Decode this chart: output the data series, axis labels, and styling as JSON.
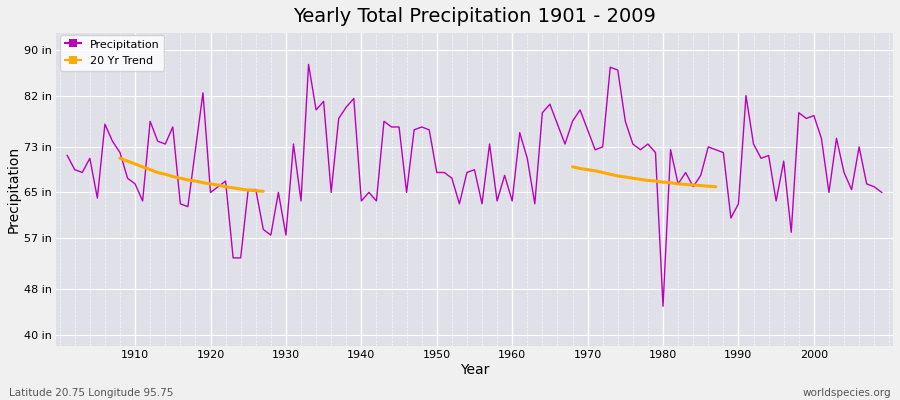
{
  "title": "Yearly Total Precipitation 1901 - 2009",
  "xlabel": "Year",
  "ylabel": "Precipitation",
  "footnote_left": "Latitude 20.75 Longitude 95.75",
  "footnote_right": "worldspecies.org",
  "bg_color": "#f0f0f0",
  "plot_bg_color": "#e0e0e8",
  "precip_color": "#bb00bb",
  "trend_color": "#ffaa00",
  "yticks": [
    40,
    48,
    57,
    65,
    73,
    82,
    90
  ],
  "ylim": [
    38,
    93
  ],
  "xlim": [
    1899.5,
    2010.5
  ],
  "years": [
    1901,
    1902,
    1903,
    1904,
    1905,
    1906,
    1907,
    1908,
    1909,
    1910,
    1911,
    1912,
    1913,
    1914,
    1915,
    1916,
    1917,
    1918,
    1919,
    1920,
    1921,
    1922,
    1923,
    1924,
    1925,
    1926,
    1927,
    1928,
    1929,
    1930,
    1931,
    1932,
    1933,
    1934,
    1935,
    1936,
    1937,
    1938,
    1939,
    1940,
    1941,
    1942,
    1943,
    1944,
    1945,
    1946,
    1947,
    1948,
    1949,
    1950,
    1951,
    1952,
    1953,
    1954,
    1955,
    1956,
    1957,
    1958,
    1959,
    1960,
    1961,
    1962,
    1963,
    1964,
    1965,
    1966,
    1967,
    1968,
    1969,
    1970,
    1971,
    1972,
    1973,
    1974,
    1975,
    1976,
    1977,
    1978,
    1979,
    1980,
    1981,
    1982,
    1983,
    1984,
    1985,
    1986,
    1987,
    1988,
    1989,
    1990,
    1991,
    1992,
    1993,
    1994,
    1995,
    1996,
    1997,
    1998,
    1999,
    2000,
    2001,
    2002,
    2003,
    2004,
    2005,
    2006,
    2007,
    2008,
    2009
  ],
  "precip": [
    71.5,
    69.0,
    68.5,
    71.0,
    64.0,
    77.0,
    74.0,
    72.0,
    67.5,
    66.5,
    63.5,
    77.5,
    74.0,
    73.5,
    76.5,
    63.0,
    62.5,
    72.5,
    82.5,
    65.0,
    66.0,
    67.0,
    53.5,
    53.5,
    65.5,
    65.5,
    58.5,
    57.5,
    65.0,
    57.5,
    73.5,
    63.5,
    87.5,
    79.5,
    81.0,
    65.0,
    78.0,
    80.0,
    81.5,
    63.5,
    65.0,
    63.5,
    77.5,
    76.5,
    76.5,
    65.0,
    76.0,
    76.5,
    76.0,
    68.5,
    68.5,
    67.5,
    63.0,
    68.5,
    69.0,
    63.0,
    73.5,
    63.5,
    68.0,
    63.5,
    75.5,
    71.0,
    63.0,
    79.0,
    80.5,
    77.0,
    73.5,
    77.5,
    79.5,
    76.0,
    72.5,
    73.0,
    87.0,
    86.5,
    77.5,
    73.5,
    72.5,
    73.5,
    72.0,
    45.0,
    72.5,
    66.5,
    68.5,
    66.0,
    68.0,
    73.0,
    72.5,
    72.0,
    60.5,
    63.0,
    82.0,
    73.5,
    71.0,
    71.5,
    63.5,
    70.5,
    58.0,
    79.0,
    78.0,
    78.5,
    74.5,
    65.0,
    74.5,
    68.5,
    65.5,
    73.0,
    66.5,
    66.0,
    65.0
  ],
  "trend_years_1": [
    1908,
    1909,
    1910,
    1911,
    1912,
    1913,
    1914,
    1915,
    1916,
    1917,
    1918,
    1919,
    1920,
    1921,
    1922,
    1923,
    1924,
    1925,
    1926,
    1927
  ],
  "trend_vals_1": [
    71.0,
    70.5,
    70.0,
    69.5,
    69.0,
    68.5,
    68.2,
    67.8,
    67.5,
    67.2,
    67.0,
    66.7,
    66.5,
    66.3,
    66.0,
    65.8,
    65.6,
    65.4,
    65.3,
    65.2
  ],
  "trend_years_2": [
    1968,
    1969,
    1970,
    1971,
    1972,
    1973,
    1974,
    1975,
    1976,
    1977,
    1978,
    1979,
    1980,
    1981,
    1982,
    1983,
    1984,
    1985,
    1986,
    1987
  ],
  "trend_vals_2": [
    69.5,
    69.2,
    69.0,
    68.8,
    68.5,
    68.2,
    67.9,
    67.7,
    67.5,
    67.3,
    67.1,
    67.0,
    66.8,
    66.7,
    66.5,
    66.4,
    66.3,
    66.2,
    66.1,
    66.0
  ]
}
